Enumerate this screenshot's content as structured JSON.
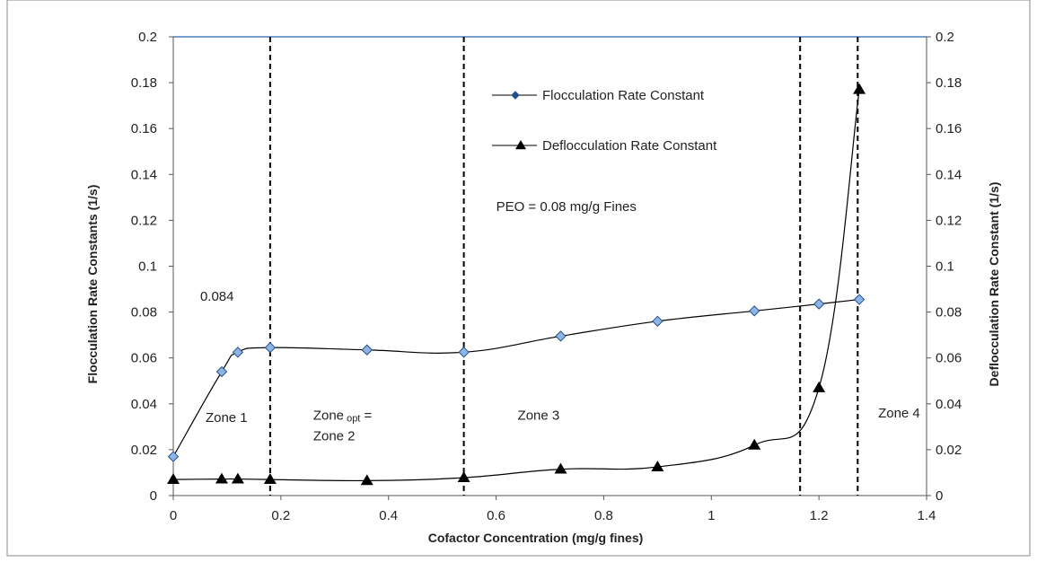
{
  "chart_data": {
    "type": "line",
    "xlabel": "Cofactor Concentration (mg/g fines)",
    "ylabel_left": "Flocculation Rate Constants (1/s)",
    "ylabel_right": "Deflocculation Rate Constant (1/s)",
    "xlim": [
      0,
      1.4
    ],
    "ylim_left": [
      0,
      0.2
    ],
    "ylim_right": [
      0,
      0.2
    ],
    "x_ticks": [
      "0",
      "0.2",
      "0.4",
      "0.6",
      "0.8",
      "1",
      "1.2",
      "1.4"
    ],
    "y_ticks": [
      "0",
      "0.02",
      "0.04",
      "0.06",
      "0.08",
      "0.1",
      "0.12",
      "0.14",
      "0.16",
      "0.18",
      "0.2"
    ],
    "grid": false,
    "legend_position": "top-right",
    "series": [
      {
        "name": "Flocculation Rate Constant",
        "marker": "diamond",
        "axis": "left",
        "x": [
          0,
          0.09,
          0.12,
          0.18,
          0.36,
          0.54,
          0.72,
          0.9,
          1.08,
          1.2,
          1.275
        ],
        "y": [
          0.017,
          0.054,
          0.0625,
          0.0645,
          0.0635,
          0.0625,
          0.0695,
          0.076,
          0.0805,
          0.0835,
          0.0855
        ]
      },
      {
        "name": "Deflocculation Rate Constant",
        "marker": "triangle",
        "axis": "right",
        "x": [
          0,
          0.09,
          0.12,
          0.18,
          0.36,
          0.54,
          0.72,
          0.9,
          1.08,
          1.2,
          1.275
        ],
        "y": [
          0.007,
          0.0072,
          0.0072,
          0.007,
          0.0065,
          0.0078,
          0.0115,
          0.0125,
          0.022,
          0.047,
          0.177
        ]
      }
    ],
    "vertical_lines_x": [
      0.18,
      0.54,
      1.165,
      1.272
    ],
    "annotations": [
      {
        "text": "PEO = 0.08 mg/g Fines",
        "x": 0.6,
        "y": 0.124
      },
      {
        "text": "0.084",
        "x": 0.05,
        "y": 0.085
      },
      {
        "text": "Zone 1",
        "x": 0.06,
        "y": 0.032
      },
      {
        "text": "Zone",
        "x": 0.26,
        "y": 0.033,
        "sub": "opt",
        "suffix": " ="
      },
      {
        "text": "Zone 2",
        "x": 0.26,
        "y": 0.024
      },
      {
        "text": "Zone 3",
        "x": 0.64,
        "y": 0.033
      },
      {
        "text": "Zone 4",
        "x": 1.31,
        "y": 0.034
      }
    ]
  },
  "colors": {
    "floc_marker_fill": "#8fb4e3",
    "floc_marker_stroke": "#1f4f8a",
    "line": "#000000",
    "top_border": "#4a7ebb",
    "frame": "#888888"
  }
}
